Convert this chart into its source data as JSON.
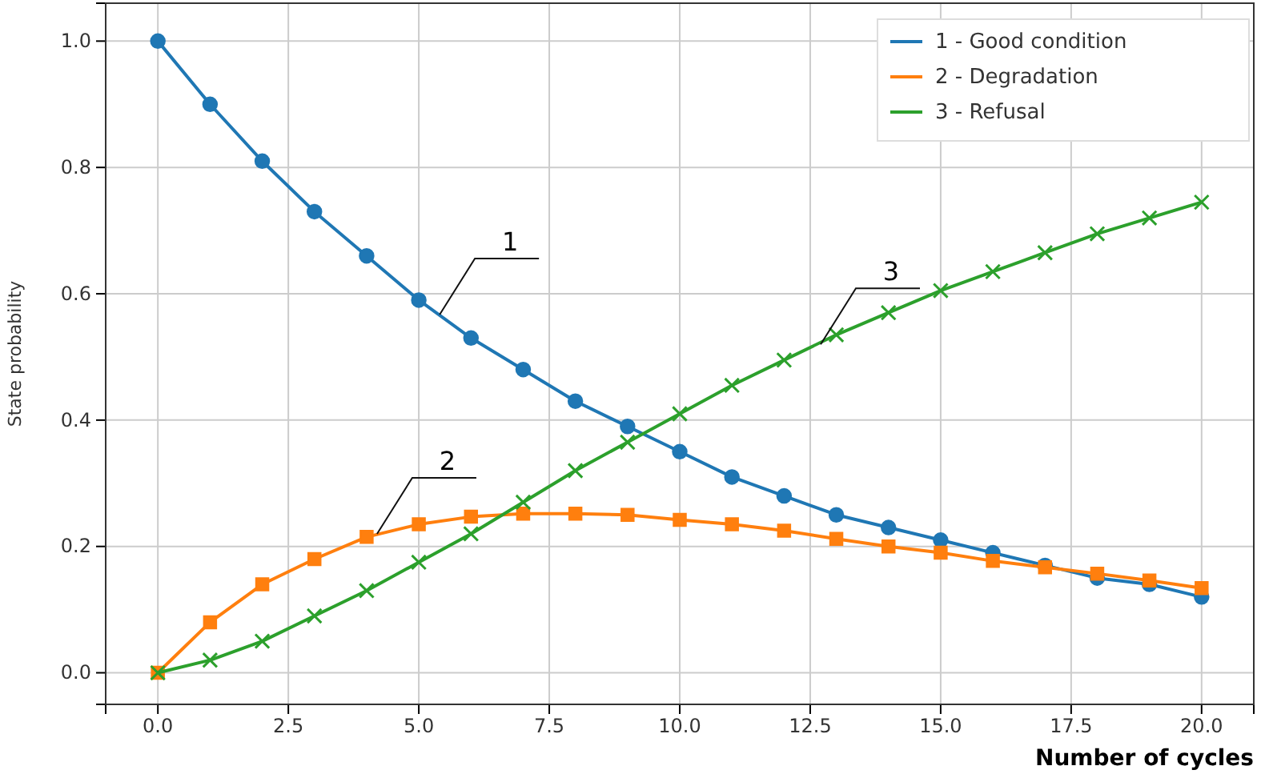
{
  "chart_data": {
    "type": "line",
    "xlabel": "Number of cycles",
    "ylabel": "State probability",
    "x": [
      0,
      1,
      2,
      3,
      4,
      5,
      6,
      7,
      8,
      9,
      10,
      11,
      12,
      13,
      14,
      15,
      16,
      17,
      18,
      19,
      20
    ],
    "xlim": [
      -1,
      21
    ],
    "xticks": [
      {
        "value": 0,
        "label": "0.0"
      },
      {
        "value": 2.5,
        "label": "2.5"
      },
      {
        "value": 5,
        "label": "5.0"
      },
      {
        "value": 7.5,
        "label": "7.5"
      },
      {
        "value": 10,
        "label": "10.0"
      },
      {
        "value": 12.5,
        "label": "12.5"
      },
      {
        "value": 15,
        "label": "15.0"
      },
      {
        "value": 17.5,
        "label": "17.5"
      },
      {
        "value": 20,
        "label": "20.0"
      }
    ],
    "ylim": [
      -0.05,
      1.06
    ],
    "yticks": [
      {
        "value": 0,
        "label": "0.0"
      },
      {
        "value": 0.2,
        "label": "0.2"
      },
      {
        "value": 0.4,
        "label": "0.4"
      },
      {
        "value": 0.6,
        "label": "0.6"
      },
      {
        "value": 0.8,
        "label": "0.8"
      },
      {
        "value": 1,
        "label": "1.0"
      }
    ],
    "grid": true,
    "legend": "top right",
    "line_style": "solid",
    "series": [
      {
        "name": "1 - Good condition",
        "color": "#1f77b4",
        "marker": "circle",
        "values": [
          1.0,
          0.9,
          0.81,
          0.73,
          0.66,
          0.59,
          0.53,
          0.48,
          0.43,
          0.39,
          0.35,
          0.31,
          0.28,
          0.25,
          0.23,
          0.21,
          0.19,
          0.17,
          0.15,
          0.14,
          0.12
        ]
      },
      {
        "name": "2 - Degradation",
        "color": "#ff7f0e",
        "marker": "square",
        "values": [
          0,
          0.08,
          0.14,
          0.18,
          0.215,
          0.235,
          0.247,
          0.252,
          0.252,
          0.25,
          0.242,
          0.235,
          0.225,
          0.212,
          0.2,
          0.19,
          0.177,
          0.167,
          0.157,
          0.146,
          0.134
        ]
      },
      {
        "name": "3 - Refusal",
        "color": "#2ca02c",
        "marker": "cross",
        "values": [
          0,
          0.02,
          0.05,
          0.09,
          0.13,
          0.175,
          0.22,
          0.27,
          0.32,
          0.365,
          0.41,
          0.455,
          0.495,
          0.535,
          0.57,
          0.605,
          0.635,
          0.665,
          0.695,
          0.72,
          0.745
        ]
      }
    ],
    "annotations": [
      {
        "text": "1",
        "x": 5.4,
        "y": 0.567
      },
      {
        "text": "2",
        "x": 4.2,
        "y": 0.22
      },
      {
        "text": "3",
        "x": 12.7,
        "y": 0.52
      }
    ]
  }
}
